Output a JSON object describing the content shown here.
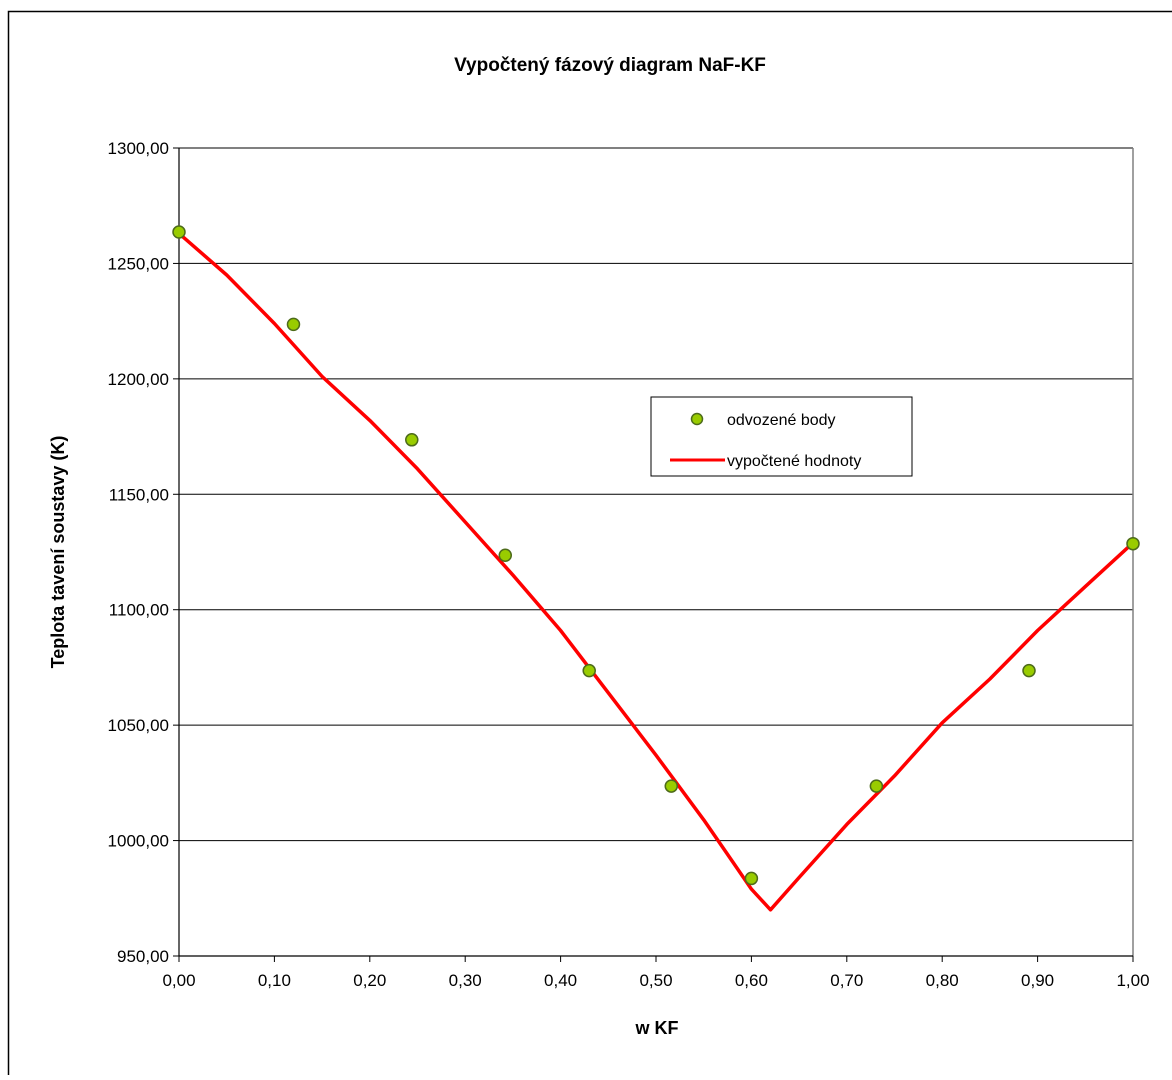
{
  "chart_data": {
    "type": "scatter",
    "title": "Vypočtený fázový diagram NaF-KF",
    "xlabel": "w KF",
    "ylabel": "Teplota tavení soustavy (K)",
    "xlim": [
      0,
      1
    ],
    "ylim": [
      950,
      1300
    ],
    "x_ticks": [
      0,
      0.1,
      0.2,
      0.3,
      0.4,
      0.5,
      0.6,
      0.7,
      0.8,
      0.9,
      1.0
    ],
    "x_tick_labels": [
      "0,00",
      "0,10",
      "0,20",
      "0,30",
      "0,40",
      "0,50",
      "0,60",
      "0,70",
      "0,80",
      "0,90",
      "1,00"
    ],
    "y_ticks": [
      950,
      1000,
      1050,
      1100,
      1150,
      1200,
      1250,
      1300
    ],
    "y_tick_labels": [
      "950,00",
      "1000,00",
      "1050,00",
      "1100,00",
      "1150,00",
      "1200,00",
      "1250,00",
      "1300,00"
    ],
    "grid": "horizontal",
    "legend_position": "center-right",
    "series": [
      {
        "name": "odvozené body",
        "kind": "scatter",
        "color": "#99cc00",
        "edge_color": "#4d6b1a",
        "points": [
          {
            "x": 0.0,
            "y": 1263.6
          },
          {
            "x": 0.12,
            "y": 1223.6
          },
          {
            "x": 0.244,
            "y": 1173.6
          },
          {
            "x": 0.342,
            "y": 1123.6
          },
          {
            "x": 0.43,
            "y": 1073.6
          },
          {
            "x": 0.516,
            "y": 1023.6
          },
          {
            "x": 0.6,
            "y": 983.6
          },
          {
            "x": 0.731,
            "y": 1023.6
          },
          {
            "x": 0.891,
            "y": 1073.6
          },
          {
            "x": 1.0,
            "y": 1128.6
          }
        ]
      },
      {
        "name": "vypočtené hodnoty",
        "kind": "line",
        "color": "#ff0000",
        "points": [
          {
            "x": 0.0,
            "y": 1263
          },
          {
            "x": 0.05,
            "y": 1245
          },
          {
            "x": 0.1,
            "y": 1224
          },
          {
            "x": 0.15,
            "y": 1201
          },
          {
            "x": 0.2,
            "y": 1182
          },
          {
            "x": 0.25,
            "y": 1161
          },
          {
            "x": 0.3,
            "y": 1138
          },
          {
            "x": 0.35,
            "y": 1115
          },
          {
            "x": 0.4,
            "y": 1091
          },
          {
            "x": 0.45,
            "y": 1064
          },
          {
            "x": 0.5,
            "y": 1037
          },
          {
            "x": 0.55,
            "y": 1009
          },
          {
            "x": 0.58,
            "y": 991
          },
          {
            "x": 0.6,
            "y": 979
          },
          {
            "x": 0.62,
            "y": 970
          },
          {
            "x": 0.65,
            "y": 984
          },
          {
            "x": 0.7,
            "y": 1007
          },
          {
            "x": 0.75,
            "y": 1028
          },
          {
            "x": 0.8,
            "y": 1051
          },
          {
            "x": 0.85,
            "y": 1070
          },
          {
            "x": 0.9,
            "y": 1091
          },
          {
            "x": 0.95,
            "y": 1110
          },
          {
            "x": 1.0,
            "y": 1129
          }
        ]
      }
    ]
  }
}
